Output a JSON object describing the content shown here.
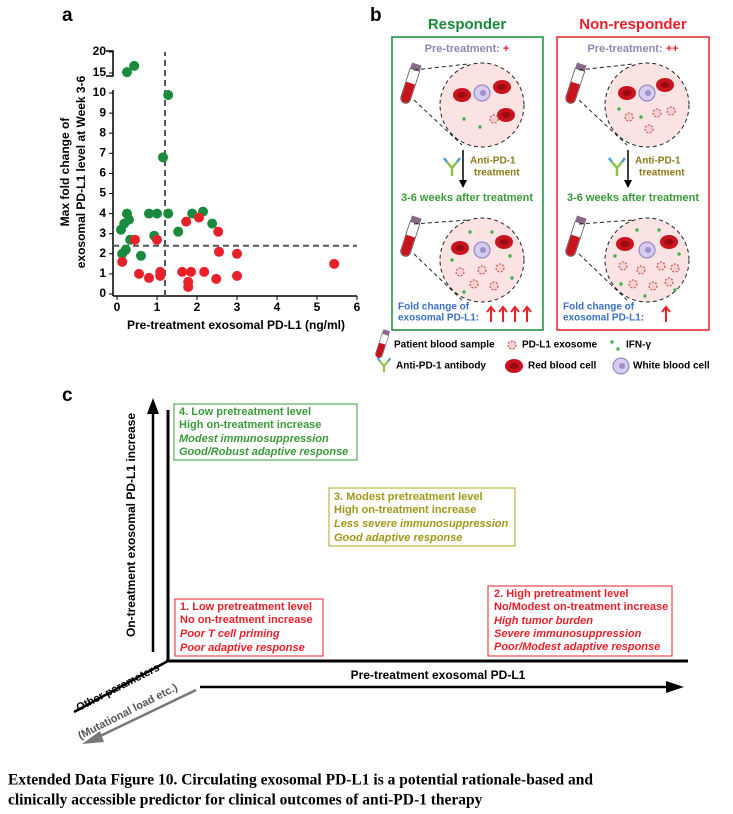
{
  "panel_labels": [
    "a",
    "b",
    "c"
  ],
  "chart_data": {
    "type": "scatter",
    "x_label": "Pre-treatment exosomal PD-L1 (ng/ml)",
    "y_label": [
      "Max fold change of",
      "exosomal PD-L1 level at Week 3-6"
    ],
    "xlim": [
      -0.1,
      6
    ],
    "xticks": [
      0,
      1,
      2,
      3,
      4,
      5,
      6
    ],
    "ylim": [
      -0.1,
      20
    ],
    "yticks": [
      0,
      1,
      2,
      3,
      4,
      5,
      6,
      7,
      8,
      9,
      10,
      15,
      20
    ],
    "reference_lines": {
      "x": 1.2,
      "y": 2.4
    },
    "series": [
      {
        "color": "#1a8a3c",
        "x": [
          0.25,
          0.43,
          1.28,
          1.15,
          0.1,
          0.18,
          0.25,
          0.3,
          0.33,
          0.22,
          0.8,
          1.0,
          1.28,
          0.6,
          1.53,
          0.93,
          1.88,
          2.15,
          2.38,
          0.13
        ],
        "values": [
          15.2,
          16.7,
          9.9,
          6.8,
          3.2,
          3.5,
          4.0,
          3.7,
          2.7,
          2.2,
          4.0,
          4.0,
          4.0,
          1.9,
          3.1,
          2.9,
          4.0,
          4.1,
          3.5,
          2.0
        ]
      },
      {
        "color": "#e8202a",
        "x": [
          0.13,
          0.45,
          0.55,
          0.8,
          1.0,
          1.08,
          1.08,
          1.63,
          1.73,
          1.78,
          1.78,
          1.85,
          2.05,
          2.18,
          2.53,
          2.55,
          2.48,
          3.0,
          3.0,
          5.43
        ],
        "values": [
          1.6,
          2.7,
          1.0,
          0.8,
          2.7,
          1.1,
          0.9,
          1.1,
          3.6,
          0.6,
          0.35,
          1.1,
          3.8,
          1.1,
          3.1,
          2.1,
          0.75,
          2.0,
          0.9,
          1.5
        ]
      }
    ]
  },
  "panel_b": {
    "groups": [
      {
        "title": "Responder",
        "pre_label": "Pre-treatment: ",
        "pre_level": "+",
        "treatment": [
          "Anti-PD-1",
          "treatment"
        ],
        "after": "3-6 weeks after treatment",
        "fold_change": [
          "Fold change of",
          "exosomal PD-L1:"
        ]
      },
      {
        "title": "Non-responder",
        "pre_label": "Pre-treatment: ",
        "pre_level": "++",
        "treatment": [
          "Anti-PD-1",
          "treatment"
        ],
        "after": "3-6 weeks after treatment",
        "fold_change": [
          "Fold change of",
          "exosomal PD-L1:"
        ]
      }
    ],
    "legend": [
      "Patient blood sample",
      "PD-L1 exosome",
      "IFN-γ",
      "Anti-PD-1 antibody",
      "Red blood cell",
      "White blood cell"
    ]
  },
  "panel_c": {
    "y_label": "On-treatment exosomal PD-L1 increase",
    "x_label": "Pre-treatment exosomal PD-L1",
    "z_label": [
      "Other parameters",
      "(Mutational load etc.)"
    ],
    "boxes": [
      [
        "1. Low pretreatment level",
        "No on-treatment increase",
        "Poor T cell priming",
        "Poor adaptive response"
      ],
      [
        "2. High pretreatment level",
        "No/Modest on-treatment increase",
        "High tumor burden",
        "Severe immunosuppression",
        "Poor/Modest adaptive response"
      ],
      [
        "3. Modest pretreatment level",
        "High on-treatment increase",
        "Less severe immunosuppression",
        "Good adaptive response"
      ],
      [
        "4. Low pretreatment level",
        "High on-treatment increase",
        "Modest immunosuppression",
        "Good/Robust adaptive response"
      ]
    ]
  },
  "caption": [
    "Extended Data Figure 10. Circulating exosomal PD-L1 is a potential rationale-based and",
    "clinically accessible predictor for clinical outcomes of anti-PD-1 therapy"
  ]
}
